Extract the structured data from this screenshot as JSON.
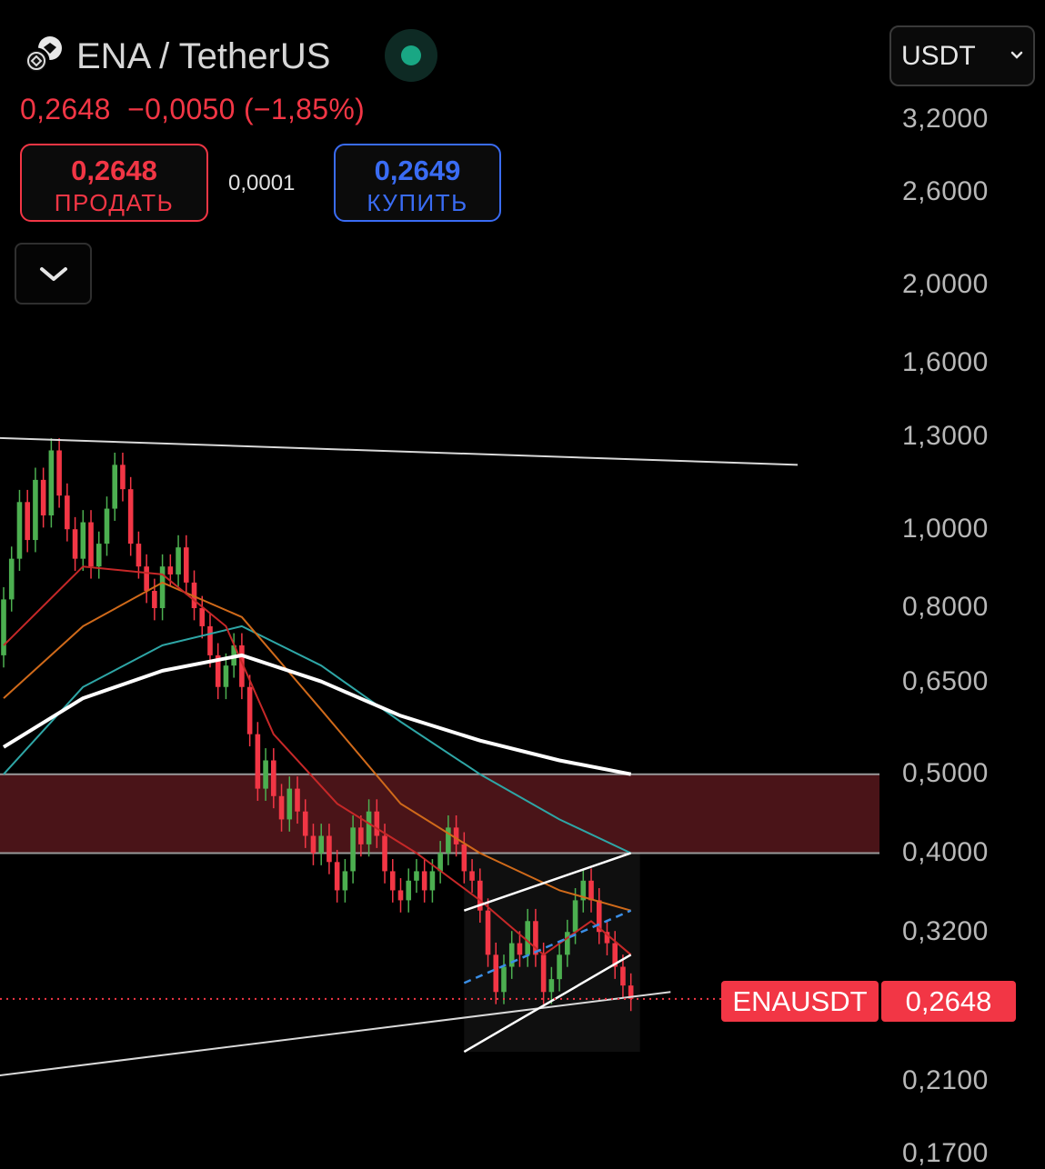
{
  "header": {
    "title": "ENA / TetherUS",
    "price": "0,2648",
    "change": "−0,0050",
    "change_pct": "(−1,85%)",
    "colors": {
      "down": "#f23645",
      "up": "#3a6cf4",
      "live": "#19a784"
    }
  },
  "trade": {
    "sell_price": "0,2648",
    "sell_label": "ПРОДАТЬ",
    "spread": "0,0001",
    "buy_price": "0,2649",
    "buy_label": "КУПИТЬ"
  },
  "currency": {
    "selected": "USDT",
    "icon": "chevron-down-icon"
  },
  "collapse": {
    "icon": "chevron-down-icon"
  },
  "price_axis": [
    "3,2000",
    "2,6000",
    "2,0000",
    "1,6000",
    "1,3000",
    "1,0000",
    "0,8000",
    "0,6500",
    "0,5000",
    "0,4000",
    "0,3200",
    "0,2648",
    "0,2100",
    "0,1700"
  ],
  "last_price": {
    "symbol": "ENAUSDT",
    "value": "0,2648"
  },
  "chart_data": {
    "type": "candlestick",
    "symbol": "ENAUSDT",
    "scale": "log",
    "ylim": [
      0.17,
      3.2
    ],
    "y_ticks": [
      3.2,
      2.6,
      2.0,
      1.6,
      1.3,
      1.0,
      0.8,
      0.65,
      0.5,
      0.4,
      0.32,
      0.21,
      0.17
    ],
    "last_price": 0.2648,
    "resistance_zone": [
      0.4,
      0.5
    ],
    "colors": {
      "up_candle": "#4caf50",
      "down_candle": "#f23645",
      "zone": "#4a1418",
      "ma_fast": "#c62828",
      "ma_mid": "#d06a1a",
      "ma_slow": "#2ea6a6",
      "ma_long": "#ffffff"
    },
    "candles": [
      [
        0.7,
        0.82
      ],
      [
        0.82,
        0.92
      ],
      [
        0.92,
        1.08
      ],
      [
        1.08,
        0.97
      ],
      [
        0.97,
        1.15
      ],
      [
        1.15,
        1.04
      ],
      [
        1.04,
        1.25
      ],
      [
        1.25,
        1.1
      ],
      [
        1.1,
        1.0
      ],
      [
        1.0,
        0.92
      ],
      [
        0.92,
        1.02
      ],
      [
        1.02,
        0.9
      ],
      [
        0.9,
        0.96
      ],
      [
        0.96,
        1.06
      ],
      [
        1.06,
        1.2
      ],
      [
        1.2,
        1.12
      ],
      [
        1.12,
        0.96
      ],
      [
        0.96,
        0.9
      ],
      [
        0.9,
        0.84
      ],
      [
        0.84,
        0.8
      ],
      [
        0.8,
        0.9
      ],
      [
        0.9,
        0.88
      ],
      [
        0.88,
        0.95
      ],
      [
        0.95,
        0.86
      ],
      [
        0.86,
        0.8
      ],
      [
        0.8,
        0.76
      ],
      [
        0.76,
        0.7
      ],
      [
        0.7,
        0.64
      ],
      [
        0.64,
        0.68
      ],
      [
        0.68,
        0.72
      ],
      [
        0.72,
        0.64
      ],
      [
        0.64,
        0.56
      ],
      [
        0.56,
        0.48
      ],
      [
        0.48,
        0.52
      ],
      [
        0.52,
        0.47
      ],
      [
        0.47,
        0.44
      ],
      [
        0.44,
        0.48
      ],
      [
        0.48,
        0.45
      ],
      [
        0.45,
        0.42
      ],
      [
        0.42,
        0.4
      ],
      [
        0.4,
        0.42
      ],
      [
        0.42,
        0.39
      ],
      [
        0.39,
        0.36
      ],
      [
        0.36,
        0.38
      ],
      [
        0.38,
        0.43
      ],
      [
        0.43,
        0.41
      ],
      [
        0.41,
        0.45
      ],
      [
        0.45,
        0.42
      ],
      [
        0.42,
        0.38
      ],
      [
        0.38,
        0.36
      ],
      [
        0.36,
        0.35
      ],
      [
        0.35,
        0.37
      ],
      [
        0.37,
        0.38
      ],
      [
        0.38,
        0.36
      ],
      [
        0.36,
        0.38
      ],
      [
        0.38,
        0.4
      ],
      [
        0.4,
        0.43
      ],
      [
        0.43,
        0.41
      ],
      [
        0.41,
        0.38
      ],
      [
        0.38,
        0.37
      ],
      [
        0.37,
        0.34
      ],
      [
        0.34,
        0.3
      ],
      [
        0.3,
        0.27
      ],
      [
        0.27,
        0.29
      ],
      [
        0.29,
        0.31
      ],
      [
        0.31,
        0.3
      ],
      [
        0.3,
        0.33
      ],
      [
        0.33,
        0.3
      ],
      [
        0.3,
        0.27
      ],
      [
        0.27,
        0.28
      ],
      [
        0.28,
        0.3
      ],
      [
        0.3,
        0.32
      ],
      [
        0.32,
        0.35
      ],
      [
        0.35,
        0.37
      ],
      [
        0.37,
        0.35
      ],
      [
        0.35,
        0.32
      ],
      [
        0.32,
        0.31
      ],
      [
        0.31,
        0.29
      ],
      [
        0.29,
        0.275
      ],
      [
        0.275,
        0.2648
      ]
    ],
    "ma_fast": [
      [
        0,
        0.72
      ],
      [
        10,
        0.9
      ],
      [
        20,
        0.88
      ],
      [
        28,
        0.76
      ],
      [
        34,
        0.56
      ],
      [
        42,
        0.46
      ],
      [
        52,
        0.4
      ],
      [
        60,
        0.35
      ],
      [
        68,
        0.3
      ],
      [
        74,
        0.33
      ],
      [
        79,
        0.3
      ]
    ],
    "ma_mid": [
      [
        0,
        0.62
      ],
      [
        10,
        0.76
      ],
      [
        20,
        0.86
      ],
      [
        30,
        0.78
      ],
      [
        40,
        0.6
      ],
      [
        50,
        0.46
      ],
      [
        60,
        0.4
      ],
      [
        70,
        0.36
      ],
      [
        79,
        0.34
      ]
    ],
    "ma_slow": [
      [
        0,
        0.5
      ],
      [
        10,
        0.64
      ],
      [
        20,
        0.72
      ],
      [
        30,
        0.76
      ],
      [
        40,
        0.68
      ],
      [
        50,
        0.58
      ],
      [
        60,
        0.5
      ],
      [
        70,
        0.44
      ],
      [
        79,
        0.4
      ]
    ],
    "ma_long": [
      [
        0,
        0.54
      ],
      [
        10,
        0.62
      ],
      [
        20,
        0.67
      ],
      [
        30,
        0.7
      ],
      [
        40,
        0.65
      ],
      [
        50,
        0.59
      ],
      [
        60,
        0.55
      ],
      [
        70,
        0.52
      ],
      [
        79,
        0.5
      ]
    ],
    "trendline_upper": [
      [
        -6,
        1.3
      ],
      [
        100,
        1.2
      ]
    ],
    "trendline_lower": [
      [
        -6,
        0.21
      ],
      [
        84,
        0.27
      ]
    ],
    "channel_upper": [
      [
        58,
        0.34
      ],
      [
        79,
        0.4
      ]
    ],
    "channel_middle": [
      [
        58,
        0.277
      ],
      [
        79,
        0.34
      ]
    ],
    "channel_lower": [
      [
        58,
        0.228
      ],
      [
        79,
        0.3
      ]
    ]
  }
}
